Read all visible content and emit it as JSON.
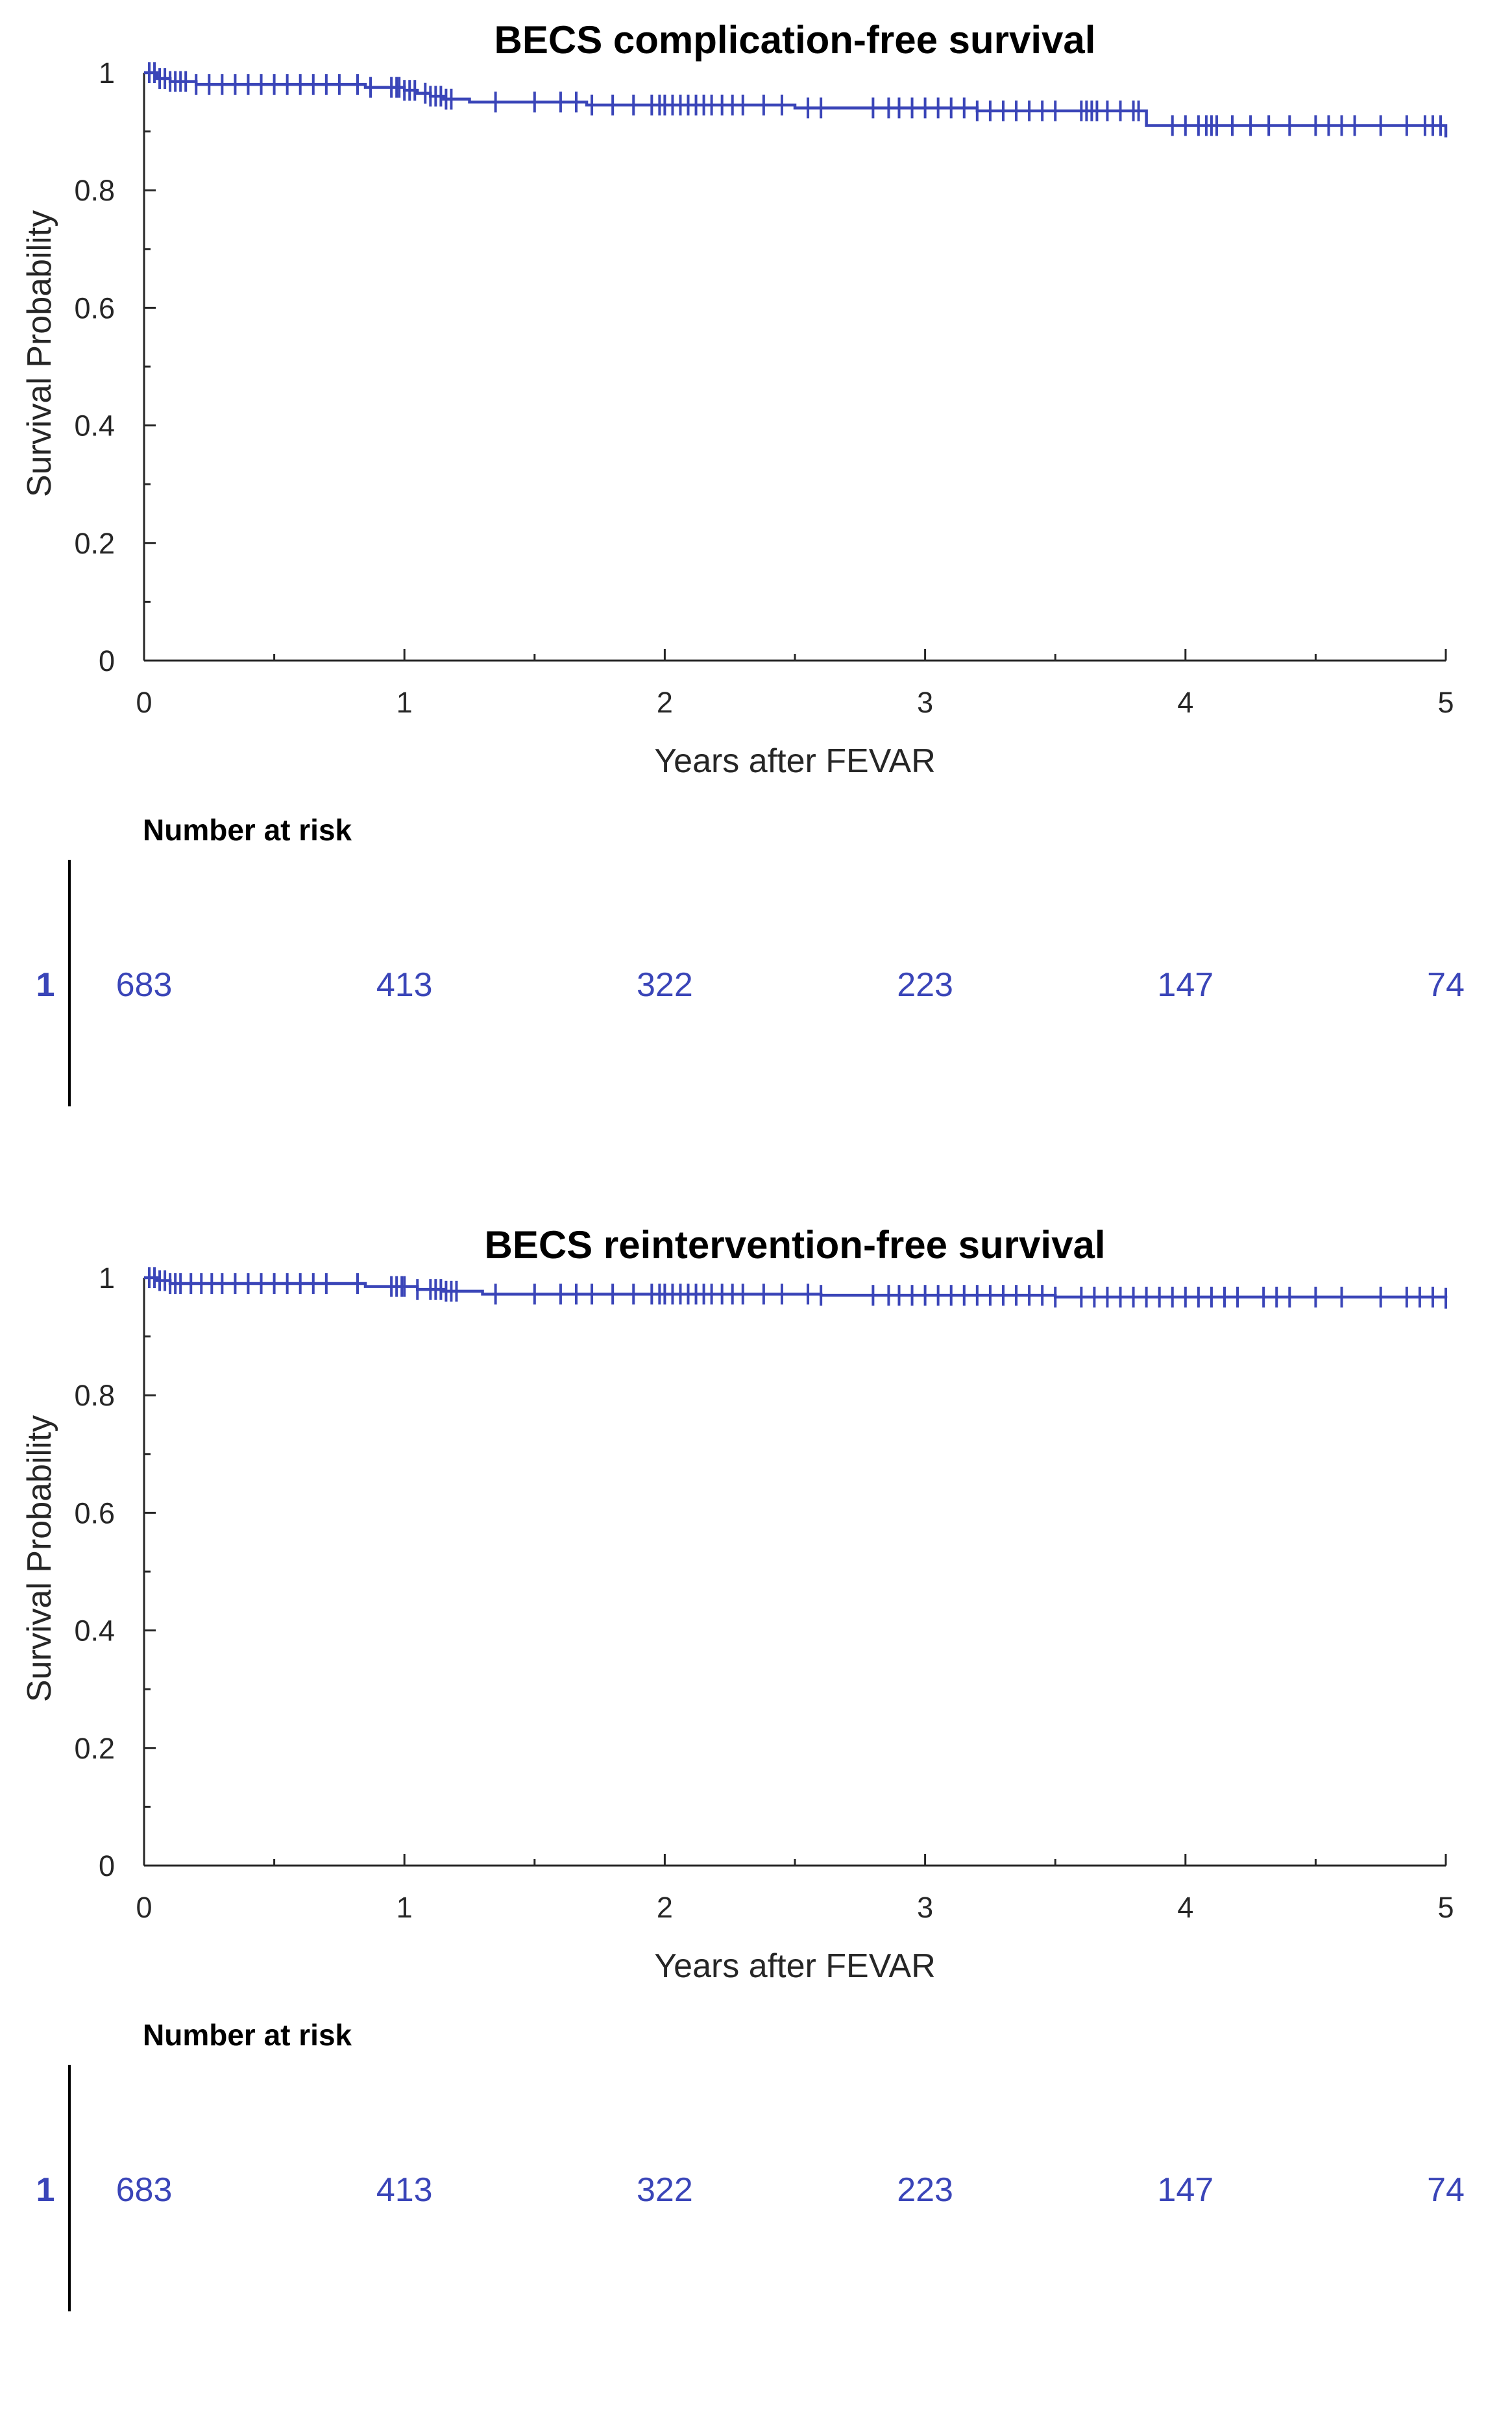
{
  "colors": {
    "series": "#3a45b8",
    "axis": "#262626"
  },
  "chart_data": [
    {
      "type": "line",
      "subtype": "kaplan-meier",
      "title": "BECS complication-free survival",
      "xlabel": "Years after FEVAR",
      "ylabel": "Survival Probability",
      "xlim": [
        0,
        5
      ],
      "ylim": [
        0,
        1
      ],
      "xticks": [
        "0",
        "1",
        "2",
        "3",
        "4",
        "5"
      ],
      "yticks": [
        "0",
        "0.2",
        "0.4",
        "0.6",
        "0.8",
        "1"
      ],
      "series": [
        {
          "name": "1",
          "steps": [
            [
              0,
              1.0
            ],
            [
              0.05,
              0.99
            ],
            [
              0.1,
              0.985
            ],
            [
              0.2,
              0.98
            ],
            [
              0.85,
              0.975
            ],
            [
              1.0,
              0.97
            ],
            [
              1.05,
              0.965
            ],
            [
              1.1,
              0.96
            ],
            [
              1.15,
              0.955
            ],
            [
              1.25,
              0.95
            ],
            [
              1.7,
              0.945
            ],
            [
              2.5,
              0.94
            ],
            [
              3.2,
              0.935
            ],
            [
              3.85,
              0.91
            ],
            [
              5.0,
              0.89
            ]
          ],
          "censored": [
            0.02,
            0.04,
            0.06,
            0.08,
            0.1,
            0.12,
            0.14,
            0.16,
            0.2,
            0.25,
            0.3,
            0.35,
            0.4,
            0.45,
            0.5,
            0.55,
            0.6,
            0.65,
            0.7,
            0.75,
            0.82,
            0.87,
            0.95,
            0.97,
            0.98,
            1.0,
            1.02,
            1.04,
            1.08,
            1.1,
            1.12,
            1.14,
            1.16,
            1.18,
            1.35,
            1.5,
            1.6,
            1.66,
            1.72,
            1.8,
            1.88,
            1.95,
            1.98,
            2.0,
            2.03,
            2.06,
            2.09,
            2.12,
            2.15,
            2.18,
            2.22,
            2.26,
            2.3,
            2.38,
            2.45,
            2.55,
            2.6,
            2.8,
            2.86,
            2.9,
            2.95,
            3.0,
            3.05,
            3.1,
            3.15,
            3.2,
            3.25,
            3.3,
            3.35,
            3.4,
            3.45,
            3.5,
            3.6,
            3.62,
            3.64,
            3.66,
            3.7,
            3.75,
            3.8,
            3.82,
            3.95,
            4.0,
            4.05,
            4.08,
            4.1,
            4.12,
            4.18,
            4.25,
            4.32,
            4.4,
            4.5,
            4.55,
            4.6,
            4.65,
            4.75,
            4.85,
            4.92,
            4.95,
            4.98
          ],
          "number_at_risk": [
            "683",
            "413",
            "322",
            "223",
            "147",
            "74"
          ]
        }
      ],
      "risk_table_heading": "Number at risk"
    },
    {
      "type": "line",
      "subtype": "kaplan-meier",
      "title": "BECS reintervention-free survival",
      "xlabel": "Years after FEVAR",
      "ylabel": "Survival Probability",
      "xlim": [
        0,
        5
      ],
      "ylim": [
        0,
        1
      ],
      "xticks": [
        "0",
        "1",
        "2",
        "3",
        "4",
        "5"
      ],
      "yticks": [
        "0",
        "0.2",
        "0.4",
        "0.6",
        "0.8",
        "1"
      ],
      "series": [
        {
          "name": "1",
          "steps": [
            [
              0,
              1.0
            ],
            [
              0.05,
              0.995
            ],
            [
              0.1,
              0.99
            ],
            [
              0.85,
              0.985
            ],
            [
              1.05,
              0.98
            ],
            [
              1.15,
              0.977
            ],
            [
              1.3,
              0.972
            ],
            [
              2.6,
              0.97
            ],
            [
              3.5,
              0.967
            ],
            [
              5.0,
              0.965
            ]
          ],
          "censored": [
            0.02,
            0.04,
            0.06,
            0.08,
            0.1,
            0.12,
            0.14,
            0.18,
            0.22,
            0.26,
            0.3,
            0.35,
            0.4,
            0.45,
            0.5,
            0.55,
            0.6,
            0.65,
            0.7,
            0.82,
            0.95,
            0.97,
            0.99,
            1.0,
            1.05,
            1.1,
            1.12,
            1.14,
            1.16,
            1.18,
            1.2,
            1.35,
            1.5,
            1.6,
            1.66,
            1.72,
            1.8,
            1.88,
            1.95,
            1.98,
            2.0,
            2.03,
            2.06,
            2.09,
            2.12,
            2.15,
            2.18,
            2.22,
            2.26,
            2.3,
            2.38,
            2.45,
            2.55,
            2.6,
            2.8,
            2.86,
            2.9,
            2.95,
            3.0,
            3.05,
            3.1,
            3.15,
            3.2,
            3.25,
            3.3,
            3.35,
            3.4,
            3.45,
            3.5,
            3.6,
            3.65,
            3.7,
            3.75,
            3.8,
            3.85,
            3.9,
            3.95,
            4.0,
            4.05,
            4.1,
            4.15,
            4.2,
            4.3,
            4.35,
            4.4,
            4.5,
            4.6,
            4.75,
            4.85,
            4.9,
            4.95,
            5.0
          ],
          "number_at_risk": [
            "683",
            "413",
            "322",
            "223",
            "147",
            "74"
          ]
        }
      ],
      "risk_table_heading": "Number at risk"
    }
  ]
}
